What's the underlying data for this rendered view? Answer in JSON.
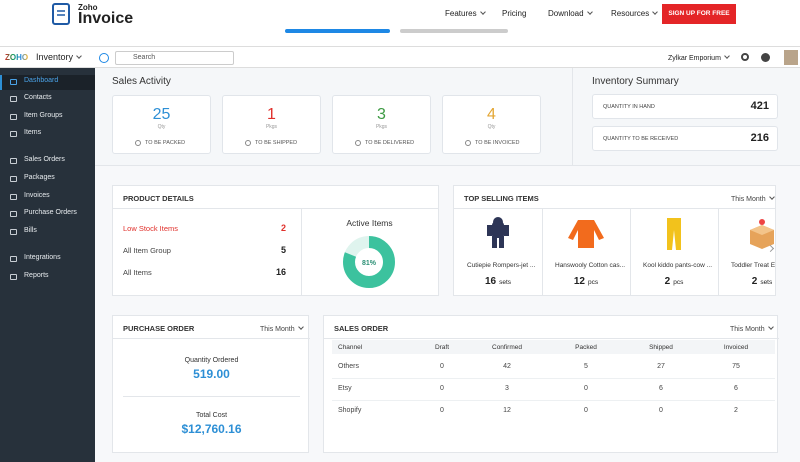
{
  "site_header": {
    "brand_top": "Zoho",
    "brand": "Invoice",
    "nav": [
      "Features",
      "Pricing",
      "Download",
      "Resources"
    ],
    "cta": "SIGN UP FOR FREE"
  },
  "app_bar": {
    "logo": "ZOHO",
    "app_name": "Inventory",
    "search_placeholder": "Search",
    "org": "Zylkar Emporium"
  },
  "sidebar": [
    "Dashboard",
    "Contacts",
    "Item Groups",
    "Items",
    "Sales Orders",
    "Packages",
    "Invoices",
    "Purchase Orders",
    "Bills",
    "Integrations",
    "Reports"
  ],
  "sales_activity": {
    "title": "Sales Activity",
    "cards": [
      {
        "value": "25",
        "unit": "Qty",
        "label": "TO BE PACKED"
      },
      {
        "value": "1",
        "unit": "Pkgs",
        "label": "TO BE SHIPPED"
      },
      {
        "value": "3",
        "unit": "Pkgs",
        "label": "TO BE DELIVERED"
      },
      {
        "value": "4",
        "unit": "Qty",
        "label": "TO BE INVOICED"
      }
    ]
  },
  "inventory_summary": {
    "title": "Inventory Summary",
    "rows": [
      {
        "label": "QUANTITY IN HAND",
        "value": "421"
      },
      {
        "label": "QUANTITY TO BE RECEIVED",
        "value": "216"
      }
    ]
  },
  "product_details": {
    "title": "PRODUCT DETAILS",
    "rows": [
      {
        "label": "Low Stock Items",
        "value": "2"
      },
      {
        "label": "All Item Group",
        "value": "5"
      },
      {
        "label": "All Items",
        "value": "16"
      }
    ],
    "active_items": {
      "label": "Active Items",
      "percent": 81,
      "percent_label": "81%"
    }
  },
  "top_selling": {
    "title": "TOP SELLING ITEMS",
    "period": "This Month",
    "items": [
      {
        "name": "Cutiepie Rompers-jet ...",
        "qty": "16",
        "unit": "sets"
      },
      {
        "name": "Hanswooly Cotton cas...",
        "qty": "12",
        "unit": "pcs"
      },
      {
        "name": "Kool kiddo pants-cow ...",
        "qty": "2",
        "unit": "pcs"
      },
      {
        "name": "Toddler Treat E...",
        "qty": "2",
        "unit": "sets"
      }
    ]
  },
  "purchase_order": {
    "title": "PURCHASE ORDER",
    "period": "This Month",
    "quantity_label": "Quantity Ordered",
    "quantity": "519.00",
    "cost_label": "Total Cost",
    "cost": "$12,760.16"
  },
  "sales_order": {
    "title": "SALES ORDER",
    "period": "This Month",
    "columns": [
      "Channel",
      "Draft",
      "Confirmed",
      "Packed",
      "Shipped",
      "Invoiced"
    ],
    "rows": [
      [
        "Others",
        "0",
        "42",
        "5",
        "27",
        "75"
      ],
      [
        "Etsy",
        "0",
        "3",
        "0",
        "6",
        "6"
      ],
      [
        "Shopify",
        "0",
        "12",
        "0",
        "0",
        "2"
      ]
    ]
  }
}
